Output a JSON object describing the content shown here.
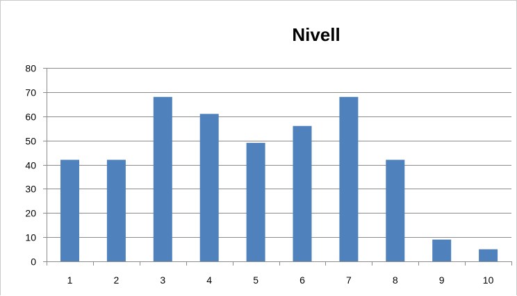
{
  "chart_data": {
    "type": "bar",
    "title": "Nivell",
    "categories": [
      "1",
      "2",
      "3",
      "4",
      "5",
      "6",
      "7",
      "8",
      "9",
      "10"
    ],
    "values": [
      42,
      42,
      68,
      61,
      49,
      56,
      68,
      42,
      9,
      5
    ],
    "ylim": [
      0,
      80
    ],
    "yticks": [
      "0",
      "10",
      "20",
      "30",
      "40",
      "50",
      "60",
      "70",
      "80"
    ],
    "grid": true,
    "legend": "none",
    "bar_color": "#4f81bd"
  }
}
